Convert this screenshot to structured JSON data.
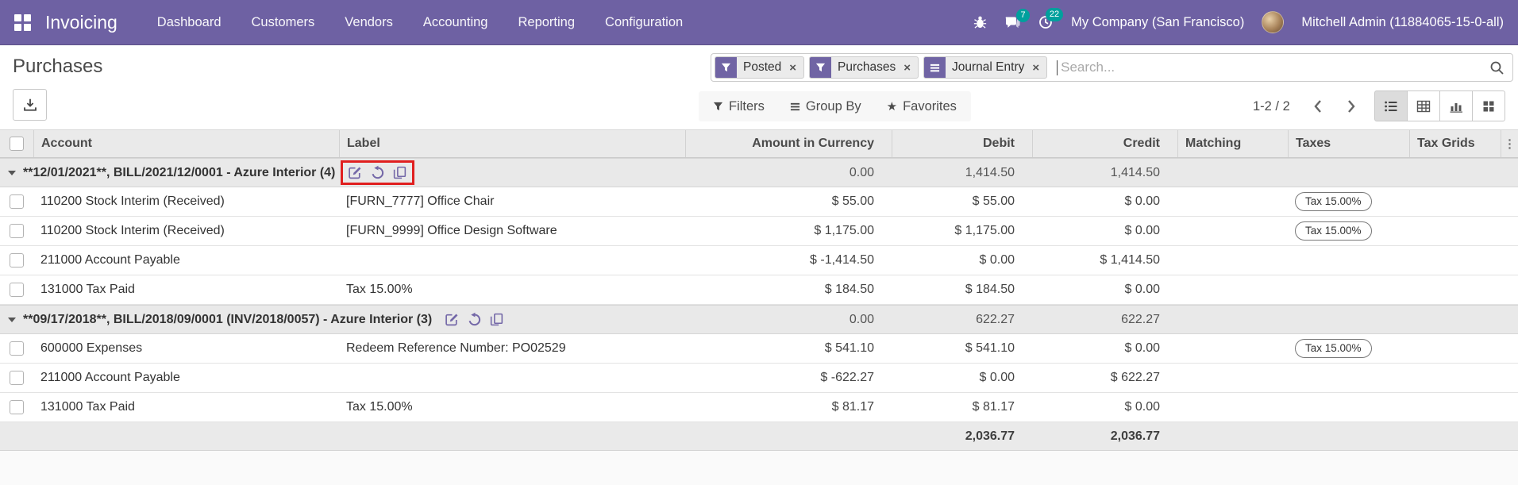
{
  "navbar": {
    "brand": "Invoicing",
    "menus": [
      "Dashboard",
      "Customers",
      "Vendors",
      "Accounting",
      "Reporting",
      "Configuration"
    ],
    "messages_badge": "7",
    "activities_badge": "22",
    "company": "My Company (San Francisco)",
    "user": "Mitchell Admin (11884065-15-0-all)",
    "colors": {
      "bg": "#6e61a3",
      "badge": "#00a09d"
    }
  },
  "breadcrumb": {
    "title": "Purchases"
  },
  "search": {
    "facets": [
      {
        "icon": "filter-icon",
        "label": "Posted"
      },
      {
        "icon": "filter-icon",
        "label": "Purchases"
      },
      {
        "icon": "group-icon",
        "label": "Journal Entry"
      }
    ],
    "placeholder": "Search..."
  },
  "controls": {
    "filters": "Filters",
    "group_by": "Group By",
    "favorites": "Favorites",
    "pager": "1-2 / 2"
  },
  "table": {
    "columns": [
      "Account",
      "Label",
      "Amount in Currency",
      "Debit",
      "Credit",
      "Matching",
      "Taxes",
      "Tax Grids"
    ],
    "rows": [
      {
        "type": "group",
        "label": "**12/01/2021**, BILL/2021/12/0001 - Azure Interior (4)",
        "amount_currency": "0.00",
        "debit": "1,414.50",
        "credit": "1,414.50",
        "annotated": true
      },
      {
        "type": "data",
        "account": "110200 Stock Interim (Received)",
        "label": "[FURN_7777] Office Chair",
        "amount_currency": "$ 55.00",
        "debit": "$ 55.00",
        "credit": "$ 0.00",
        "tax": "Tax 15.00%"
      },
      {
        "type": "data",
        "account": "110200 Stock Interim (Received)",
        "label": "[FURN_9999] Office Design Software",
        "amount_currency": "$ 1,175.00",
        "debit": "$ 1,175.00",
        "credit": "$ 0.00",
        "tax": ""
      },
      {
        "type": "data",
        "account": "211000 Account Payable",
        "label": "",
        "amount_currency": "$ -1,414.50",
        "debit": "$ 0.00",
        "credit": "$ 1,414.50",
        "tax": ""
      },
      {
        "type": "data",
        "account": "131000 Tax Paid",
        "label": "Tax 15.00%",
        "amount_currency": "$ 184.50",
        "debit": "$ 184.50",
        "credit": "$ 0.00",
        "tax": ""
      },
      {
        "type": "group",
        "label": "**09/17/2018**, BILL/2018/09/0001 (INV/2018/0057) - Azure Interior (3)",
        "amount_currency": "0.00",
        "debit": "622.27",
        "credit": "622.27",
        "annotated": false
      },
      {
        "type": "data",
        "account": "600000 Expenses",
        "label": "Redeem Reference Number: PO02529",
        "amount_currency": "$ 541.10",
        "debit": "$ 541.10",
        "credit": "$ 0.00",
        "tax": "Tax 15.00%"
      },
      {
        "type": "data",
        "account": "211000 Account Payable",
        "label": "",
        "amount_currency": "$ -622.27",
        "debit": "$ 0.00",
        "credit": "$ 622.27",
        "tax": ""
      },
      {
        "type": "data",
        "account": "131000 Tax Paid",
        "label": "Tax 15.00%",
        "amount_currency": "$ 81.17",
        "debit": "$ 81.17",
        "credit": "$ 0.00",
        "tax": ""
      }
    ],
    "tax_badge_rows": [
      1,
      2,
      6
    ],
    "footer": {
      "debit": "2,036.77",
      "credit": "2,036.77"
    },
    "annotation_color": "#e01f1f"
  }
}
